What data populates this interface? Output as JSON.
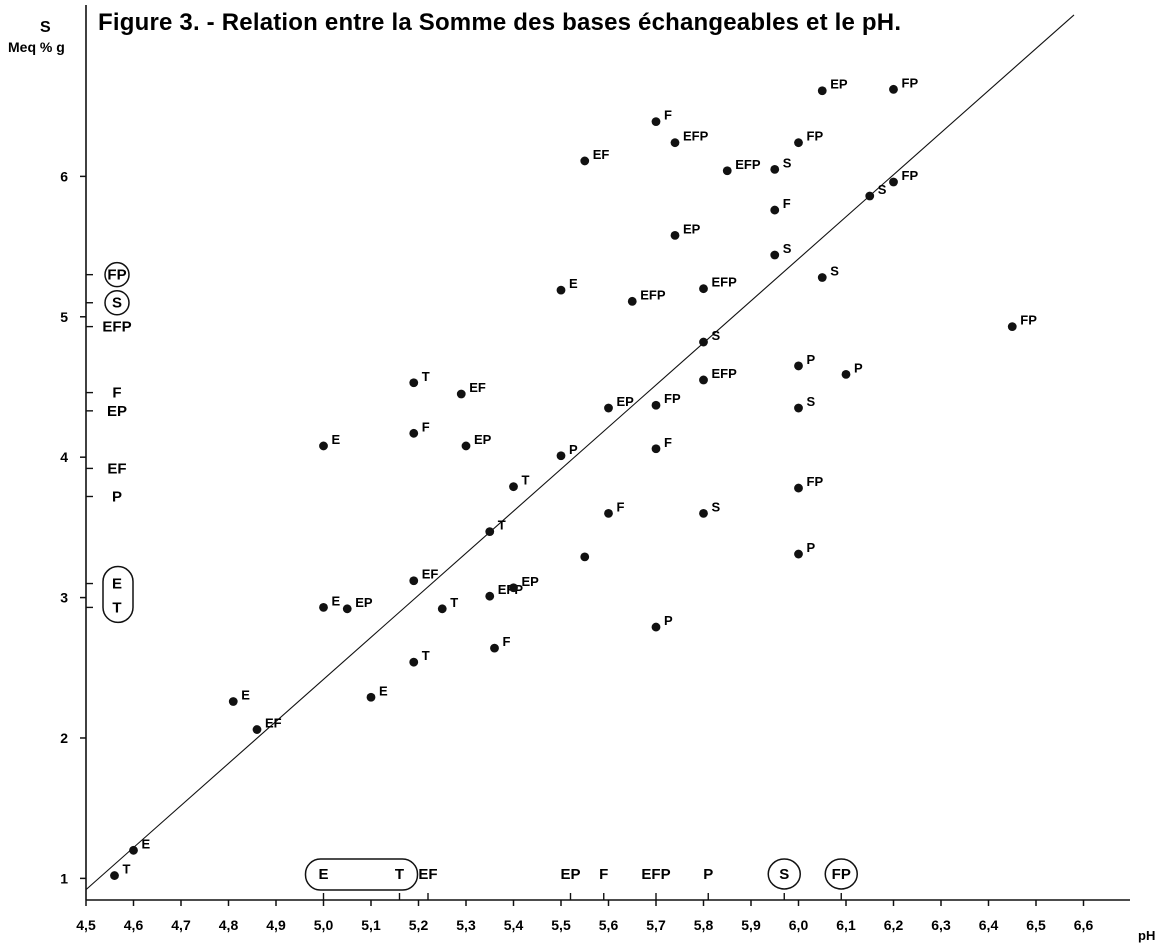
{
  "chart_data": {
    "type": "scatter",
    "title": "Figure 3. - Relation entre la Somme des bases échangeables et le pH.",
    "xlabel": "pH",
    "ylabel": "S",
    "ylabel_unit": "Meq % g",
    "xlim": [
      4.5,
      6.7
    ],
    "ylim": [
      0.7,
      6.95
    ],
    "x_ticks": [
      "4,5",
      "4,6",
      "4,7",
      "4,8",
      "4,9",
      "5,0",
      "5,1",
      "5,2",
      "5,3",
      "5,4",
      "5,5",
      "5,6",
      "5,7",
      "5,8",
      "5,9",
      "6,0",
      "6,1",
      "6,2",
      "6,3",
      "6,4",
      "6,5",
      "6,6"
    ],
    "y_ticks": [
      "1",
      "2",
      "3",
      "4",
      "5",
      "6"
    ],
    "regression_line": {
      "from": [
        4.5,
        0.92
      ],
      "to": [
        6.58,
        7.15
      ]
    },
    "points": [
      {
        "x": 4.56,
        "y": 1.02,
        "label": "T"
      },
      {
        "x": 4.6,
        "y": 1.2,
        "label": "E"
      },
      {
        "x": 4.81,
        "y": 2.26,
        "label": "E"
      },
      {
        "x": 4.86,
        "y": 2.06,
        "label": "EF"
      },
      {
        "x": 5.0,
        "y": 4.08,
        "label": "E"
      },
      {
        "x": 5.0,
        "y": 2.93,
        "label": "E"
      },
      {
        "x": 5.05,
        "y": 2.92,
        "label": "EP"
      },
      {
        "x": 5.1,
        "y": 2.29,
        "label": "E"
      },
      {
        "x": 5.19,
        "y": 4.53,
        "label": "T"
      },
      {
        "x": 5.19,
        "y": 4.17,
        "label": "F"
      },
      {
        "x": 5.19,
        "y": 3.12,
        "label": "EF"
      },
      {
        "x": 5.19,
        "y": 2.54,
        "label": "T"
      },
      {
        "x": 5.25,
        "y": 2.92,
        "label": "T"
      },
      {
        "x": 5.29,
        "y": 4.45,
        "label": "EF"
      },
      {
        "x": 5.3,
        "y": 4.08,
        "label": "EP"
      },
      {
        "x": 5.35,
        "y": 3.47,
        "label": "T"
      },
      {
        "x": 5.35,
        "y": 3.01,
        "label": "EFP"
      },
      {
        "x": 5.36,
        "y": 2.64,
        "label": "F"
      },
      {
        "x": 5.4,
        "y": 3.79,
        "label": "T"
      },
      {
        "x": 5.4,
        "y": 3.07,
        "label": "EP"
      },
      {
        "x": 5.5,
        "y": 5.19,
        "label": "E"
      },
      {
        "x": 5.5,
        "y": 4.01,
        "label": "P"
      },
      {
        "x": 5.55,
        "y": 6.11,
        "label": "EF"
      },
      {
        "x": 5.55,
        "y": 3.29,
        "label": ""
      },
      {
        "x": 5.6,
        "y": 4.35,
        "label": "EP"
      },
      {
        "x": 5.6,
        "y": 3.6,
        "label": "F"
      },
      {
        "x": 5.65,
        "y": 5.11,
        "label": "EFP"
      },
      {
        "x": 5.7,
        "y": 6.39,
        "label": "F"
      },
      {
        "x": 5.7,
        "y": 4.37,
        "label": "FP"
      },
      {
        "x": 5.7,
        "y": 4.06,
        "label": "F"
      },
      {
        "x": 5.7,
        "y": 2.79,
        "label": "P"
      },
      {
        "x": 5.74,
        "y": 6.24,
        "label": "EFP"
      },
      {
        "x": 5.74,
        "y": 5.58,
        "label": "EP"
      },
      {
        "x": 5.8,
        "y": 5.2,
        "label": "EFP"
      },
      {
        "x": 5.8,
        "y": 4.82,
        "label": "S"
      },
      {
        "x": 5.8,
        "y": 4.55,
        "label": "EFP"
      },
      {
        "x": 5.8,
        "y": 3.6,
        "label": "S"
      },
      {
        "x": 5.85,
        "y": 6.04,
        "label": "EFP"
      },
      {
        "x": 5.95,
        "y": 6.05,
        "label": "S"
      },
      {
        "x": 5.95,
        "y": 5.76,
        "label": "F"
      },
      {
        "x": 5.95,
        "y": 5.44,
        "label": "S"
      },
      {
        "x": 6.0,
        "y": 6.24,
        "label": "FP"
      },
      {
        "x": 6.0,
        "y": 4.65,
        "label": "P"
      },
      {
        "x": 6.0,
        "y": 4.35,
        "label": "S"
      },
      {
        "x": 6.0,
        "y": 3.78,
        "label": "FP"
      },
      {
        "x": 6.0,
        "y": 3.31,
        "label": "P"
      },
      {
        "x": 6.05,
        "y": 6.61,
        "label": "EP"
      },
      {
        "x": 6.05,
        "y": 5.28,
        "label": "S"
      },
      {
        "x": 6.1,
        "y": 4.59,
        "label": "P"
      },
      {
        "x": 6.15,
        "y": 5.86,
        "label": "S"
      },
      {
        "x": 6.2,
        "y": 6.62,
        "label": "FP"
      },
      {
        "x": 6.2,
        "y": 5.96,
        "label": "FP"
      },
      {
        "x": 6.45,
        "y": 4.93,
        "label": "FP"
      }
    ],
    "y_axis_markers": [
      {
        "y": 5.3,
        "label": "FP",
        "circled": true
      },
      {
        "y": 5.1,
        "label": "S",
        "circled": true
      },
      {
        "y": 4.93,
        "label": "EFP",
        "circled": false
      },
      {
        "y": 4.46,
        "label": "F",
        "circled": false
      },
      {
        "y": 4.33,
        "label": "EP",
        "circled": false
      },
      {
        "y": 3.92,
        "label": "EF",
        "circled": false
      },
      {
        "y": 3.72,
        "label": "P",
        "circled": false
      },
      {
        "y": 3.1,
        "label": "E",
        "circled": false
      },
      {
        "y": 2.93,
        "label": "T",
        "circled": false
      }
    ],
    "y_axis_group_box": [
      "E",
      "T"
    ],
    "x_axis_markers": [
      {
        "x": 5.0,
        "label": "E",
        "circled": false
      },
      {
        "x": 5.16,
        "label": "T",
        "circled": false
      },
      {
        "x": 5.22,
        "label": "EF",
        "circled": false
      },
      {
        "x": 5.52,
        "label": "EP",
        "circled": false
      },
      {
        "x": 5.59,
        "label": "F",
        "circled": false
      },
      {
        "x": 5.7,
        "label": "EFP",
        "circled": false
      },
      {
        "x": 5.81,
        "label": "P",
        "circled": false
      },
      {
        "x": 5.97,
        "label": "S",
        "circled": true
      },
      {
        "x": 6.09,
        "label": "FP",
        "circled": true
      }
    ],
    "x_axis_group_box": [
      "E",
      "T"
    ]
  }
}
